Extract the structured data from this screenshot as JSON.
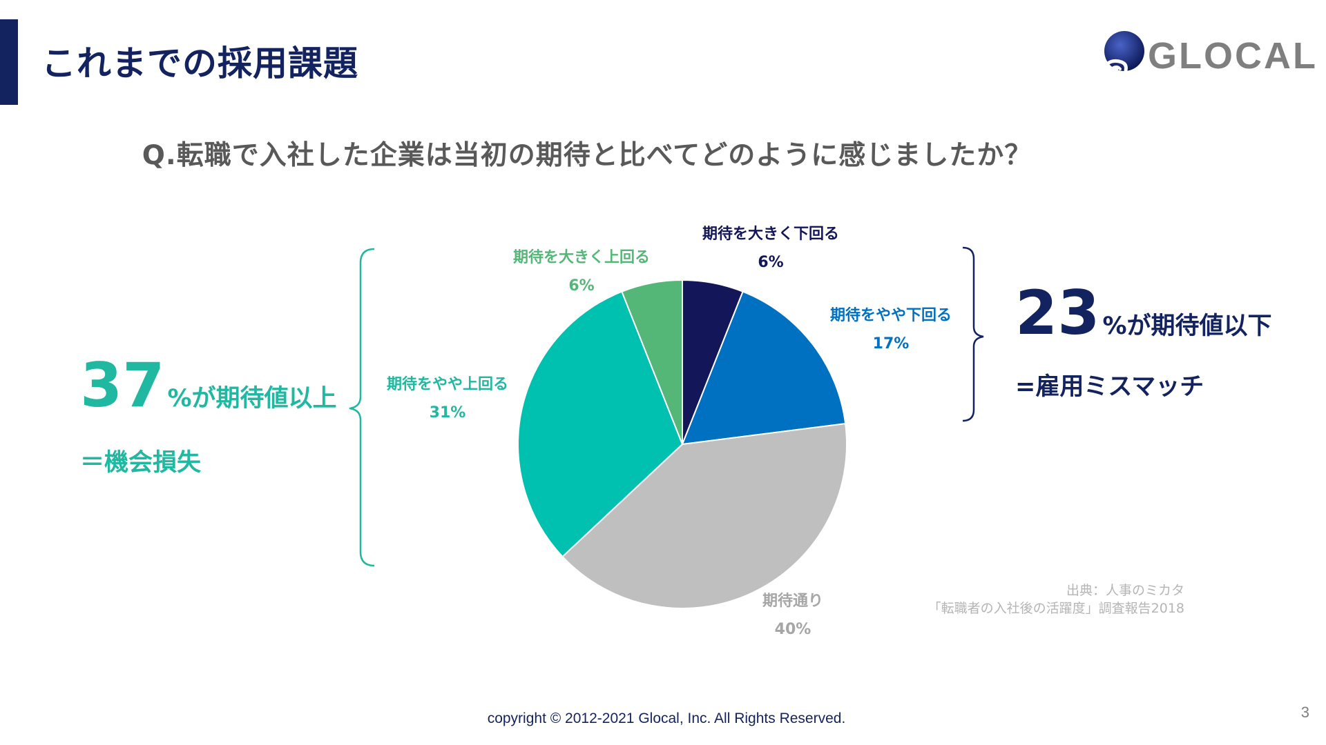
{
  "header": {
    "title": "これまでの採用課題",
    "logo_text": "GLOCAL"
  },
  "question": "Q.転職で入社した企業は当初の期待と比べてどのように感じましたか？",
  "chart_data": {
    "type": "pie",
    "title": "Q.転職で入社した企業は当初の期待と比べてどのように感じましたか？",
    "start": "12 o'clock",
    "direction": "clockwise",
    "categories": [
      "期待を大きく下回る",
      "期待をやや下回る",
      "期待通り",
      "期待をやや上回る",
      "期待を大きく上回る"
    ],
    "values": [
      6,
      17,
      40,
      31,
      6
    ],
    "labels": [
      "6%",
      "17%",
      "40%",
      "31%",
      "6%"
    ],
    "colors": [
      "#13175a",
      "#0070c0",
      "#bfbfbf",
      "#00c0b0",
      "#55b777"
    ]
  },
  "callouts": {
    "left": {
      "big": "37",
      "small": "%が期待値以上",
      "sub": "＝機会損失"
    },
    "right": {
      "big": "23",
      "small": "%が期待値以下",
      "sub": "=雇用ミスマッチ"
    }
  },
  "colors": {
    "navy": "#13235f",
    "teal": "#20b8a0",
    "gray_text": "#595959"
  },
  "source": {
    "line1": "出典：人事のミカタ",
    "line2": "「転職者の入社後の活躍度」調査報告2018"
  },
  "footer": {
    "copyright": "copyright © 2012-2021 Glocal, Inc. All Rights Reserved.",
    "page_number": "3"
  }
}
